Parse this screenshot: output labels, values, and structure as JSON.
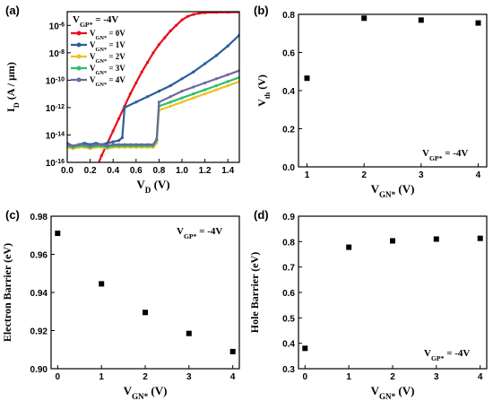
{
  "chart_data": [
    {
      "panel": "(a)",
      "type": "line",
      "xlabel": "V",
      "xlabel_sub": "D",
      "xlabel_unit": " (V)",
      "ylabel": "I",
      "ylabel_sub": "D",
      "ylabel_unit": " (A / μm)",
      "xlim": [
        0.0,
        1.5
      ],
      "ylim": [
        -16,
        -5
      ],
      "log_y": true,
      "xticks": [
        "0.0",
        "0.2",
        "0.4",
        "0.6",
        "0.8",
        "1.0",
        "1.2",
        "1.4"
      ],
      "yticks": [
        {
          "base": "10",
          "exp": "-6",
          "v": -6
        },
        {
          "base": "10",
          "exp": "-8",
          "v": -8
        },
        {
          "base": "10",
          "exp": "-10",
          "v": -10
        },
        {
          "base": "10",
          "exp": "-12",
          "v": -12
        },
        {
          "base": "10",
          "exp": "-14",
          "v": -14
        },
        {
          "base": "10",
          "exp": "-16",
          "v": -16
        }
      ],
      "annotation": {
        "main": "V",
        "sub": "GP*",
        "rest": " = -4V"
      },
      "series": [
        {
          "name_main": "V",
          "name_sub": "GN*",
          "name_rest": " = 0V",
          "color": "#e8101b",
          "x": [
            0.25,
            0.3,
            0.35,
            0.4,
            0.45,
            0.5,
            0.55,
            0.6,
            0.65,
            0.7,
            0.75,
            0.8,
            0.85,
            0.9,
            0.95,
            1.0,
            1.05,
            1.1,
            1.15,
            1.2,
            1.3,
            1.4,
            1.5
          ],
          "y": [
            -16.5,
            -15.5,
            -14.6,
            -13.7,
            -12.8,
            -11.9,
            -11.0,
            -10.2,
            -9.4,
            -8.7,
            -8.0,
            -7.4,
            -6.9,
            -6.4,
            -6.0,
            -5.6,
            -5.35,
            -5.2,
            -5.12,
            -5.08,
            -5.05,
            -5.04,
            -5.03
          ]
        },
        {
          "name_main": "V",
          "name_sub": "GN*",
          "name_rest": " = 1V",
          "color": "#2b5d9e",
          "x": [
            0.0,
            0.05,
            0.1,
            0.15,
            0.2,
            0.25,
            0.3,
            0.35,
            0.4,
            0.45,
            0.48,
            0.5,
            0.6,
            0.7,
            0.8,
            0.9,
            1.0,
            1.1,
            1.2,
            1.3,
            1.4,
            1.5
          ],
          "y": [
            -14.6,
            -14.8,
            -14.7,
            -14.6,
            -14.7,
            -14.6,
            -14.7,
            -14.6,
            -14.5,
            -14.4,
            -14.2,
            -12.0,
            -11.6,
            -11.2,
            -10.8,
            -10.4,
            -9.9,
            -9.4,
            -8.8,
            -8.2,
            -7.5,
            -6.7
          ]
        },
        {
          "name_main": "V",
          "name_sub": "GN*",
          "name_rest": " = 2V",
          "color": "#f0c020",
          "x": [
            0.0,
            0.05,
            0.1,
            0.15,
            0.2,
            0.25,
            0.3,
            0.35,
            0.4,
            0.45,
            0.5,
            0.55,
            0.6,
            0.65,
            0.7,
            0.75,
            0.78,
            0.8,
            0.9,
            1.0,
            1.1,
            1.2,
            1.3,
            1.4,
            1.5
          ],
          "y": [
            -14.9,
            -15.0,
            -14.9,
            -14.9,
            -15.0,
            -14.9,
            -14.9,
            -15.0,
            -14.9,
            -14.9,
            -14.9,
            -14.9,
            -14.9,
            -14.9,
            -14.9,
            -14.9,
            -14.6,
            -12.2,
            -11.9,
            -11.6,
            -11.3,
            -11.0,
            -10.7,
            -10.4,
            -10.1
          ]
        },
        {
          "name_main": "V",
          "name_sub": "GN*",
          "name_rest": " = 3V",
          "color": "#2bbf6a",
          "x": [
            0.0,
            0.05,
            0.1,
            0.15,
            0.2,
            0.25,
            0.3,
            0.35,
            0.4,
            0.45,
            0.5,
            0.55,
            0.6,
            0.65,
            0.7,
            0.75,
            0.78,
            0.8,
            0.9,
            1.0,
            1.1,
            1.2,
            1.3,
            1.4,
            1.5
          ],
          "y": [
            -14.8,
            -14.9,
            -14.8,
            -14.8,
            -14.9,
            -14.8,
            -14.8,
            -14.9,
            -14.8,
            -14.8,
            -14.8,
            -14.8,
            -14.8,
            -14.8,
            -14.8,
            -14.8,
            -14.4,
            -11.9,
            -11.6,
            -11.3,
            -11.0,
            -10.7,
            -10.4,
            -10.1,
            -9.8
          ]
        },
        {
          "name_main": "V",
          "name_sub": "GN*",
          "name_rest": " = 4V",
          "color": "#6d6a9c",
          "x": [
            0.0,
            0.05,
            0.1,
            0.15,
            0.2,
            0.25,
            0.3,
            0.35,
            0.4,
            0.45,
            0.5,
            0.55,
            0.6,
            0.65,
            0.7,
            0.75,
            0.78,
            0.8,
            0.9,
            1.0,
            1.1,
            1.2,
            1.3,
            1.4,
            1.5
          ],
          "y": [
            -14.7,
            -14.8,
            -14.7,
            -14.7,
            -14.8,
            -14.7,
            -14.7,
            -14.8,
            -14.7,
            -14.7,
            -14.7,
            -14.7,
            -14.7,
            -14.7,
            -14.7,
            -14.7,
            -14.3,
            -11.6,
            -11.2,
            -10.8,
            -10.5,
            -10.2,
            -9.9,
            -9.6,
            -9.3
          ]
        }
      ]
    },
    {
      "panel": "(b)",
      "type": "scatter",
      "xlabel": "V",
      "xlabel_sub": "GN*",
      "xlabel_unit": " (V)",
      "ylabel": "V",
      "ylabel_sub": "th",
      "ylabel_unit": " (V)",
      "xlim": [
        0.85,
        4.15
      ],
      "ylim": [
        0.0,
        0.8
      ],
      "xticks": [
        1,
        2,
        3,
        4
      ],
      "yticks": [
        0.0,
        0.2,
        0.4,
        0.6,
        0.8
      ],
      "ytick_labels": [
        "0.0",
        "0.2",
        "0.4",
        "0.6",
        "0.8"
      ],
      "annotation": {
        "main": "V",
        "sub": "GP*",
        "rest": " = -4V"
      },
      "x": [
        1,
        2,
        3,
        4
      ],
      "values": [
        0.465,
        0.78,
        0.77,
        0.755
      ]
    },
    {
      "panel": "(c)",
      "type": "scatter",
      "xlabel": "V",
      "xlabel_sub": "GN*",
      "xlabel_unit": " (V)",
      "ylabel": "Electron Barrier",
      "ylabel_sub": "",
      "ylabel_unit": " (eV)",
      "xlim": [
        -0.15,
        4.15
      ],
      "ylim": [
        0.9,
        0.98
      ],
      "xticks": [
        0,
        1,
        2,
        3,
        4
      ],
      "yticks": [
        0.9,
        0.92,
        0.94,
        0.96,
        0.98
      ],
      "ytick_labels": [
        "0.90",
        "0.92",
        "0.94",
        "0.96",
        "0.98"
      ],
      "annotation": {
        "main": "V",
        "sub": "GP*",
        "rest": " = -4V"
      },
      "x": [
        0,
        1,
        2,
        3,
        4
      ],
      "values": [
        0.971,
        0.9445,
        0.9295,
        0.9185,
        0.909
      ]
    },
    {
      "panel": "(d)",
      "type": "scatter",
      "xlabel": "V",
      "xlabel_sub": "GN*",
      "xlabel_unit": " (V)",
      "ylabel": "Hole Barrier",
      "ylabel_sub": "",
      "ylabel_unit": " (eV)",
      "xlim": [
        -0.15,
        4.15
      ],
      "ylim": [
        0.3,
        0.9
      ],
      "xticks": [
        0,
        1,
        2,
        3,
        4
      ],
      "yticks": [
        0.3,
        0.4,
        0.5,
        0.6,
        0.7,
        0.8,
        0.9
      ],
      "ytick_labels": [
        "0.3",
        "0.4",
        "0.5",
        "0.6",
        "0.7",
        "0.8",
        "0.9"
      ],
      "annotation": {
        "main": "V",
        "sub": "GP*",
        "rest": " = -4V"
      },
      "x": [
        0,
        1,
        2,
        3,
        4
      ],
      "values": [
        0.38,
        0.778,
        0.803,
        0.81,
        0.813
      ]
    }
  ]
}
